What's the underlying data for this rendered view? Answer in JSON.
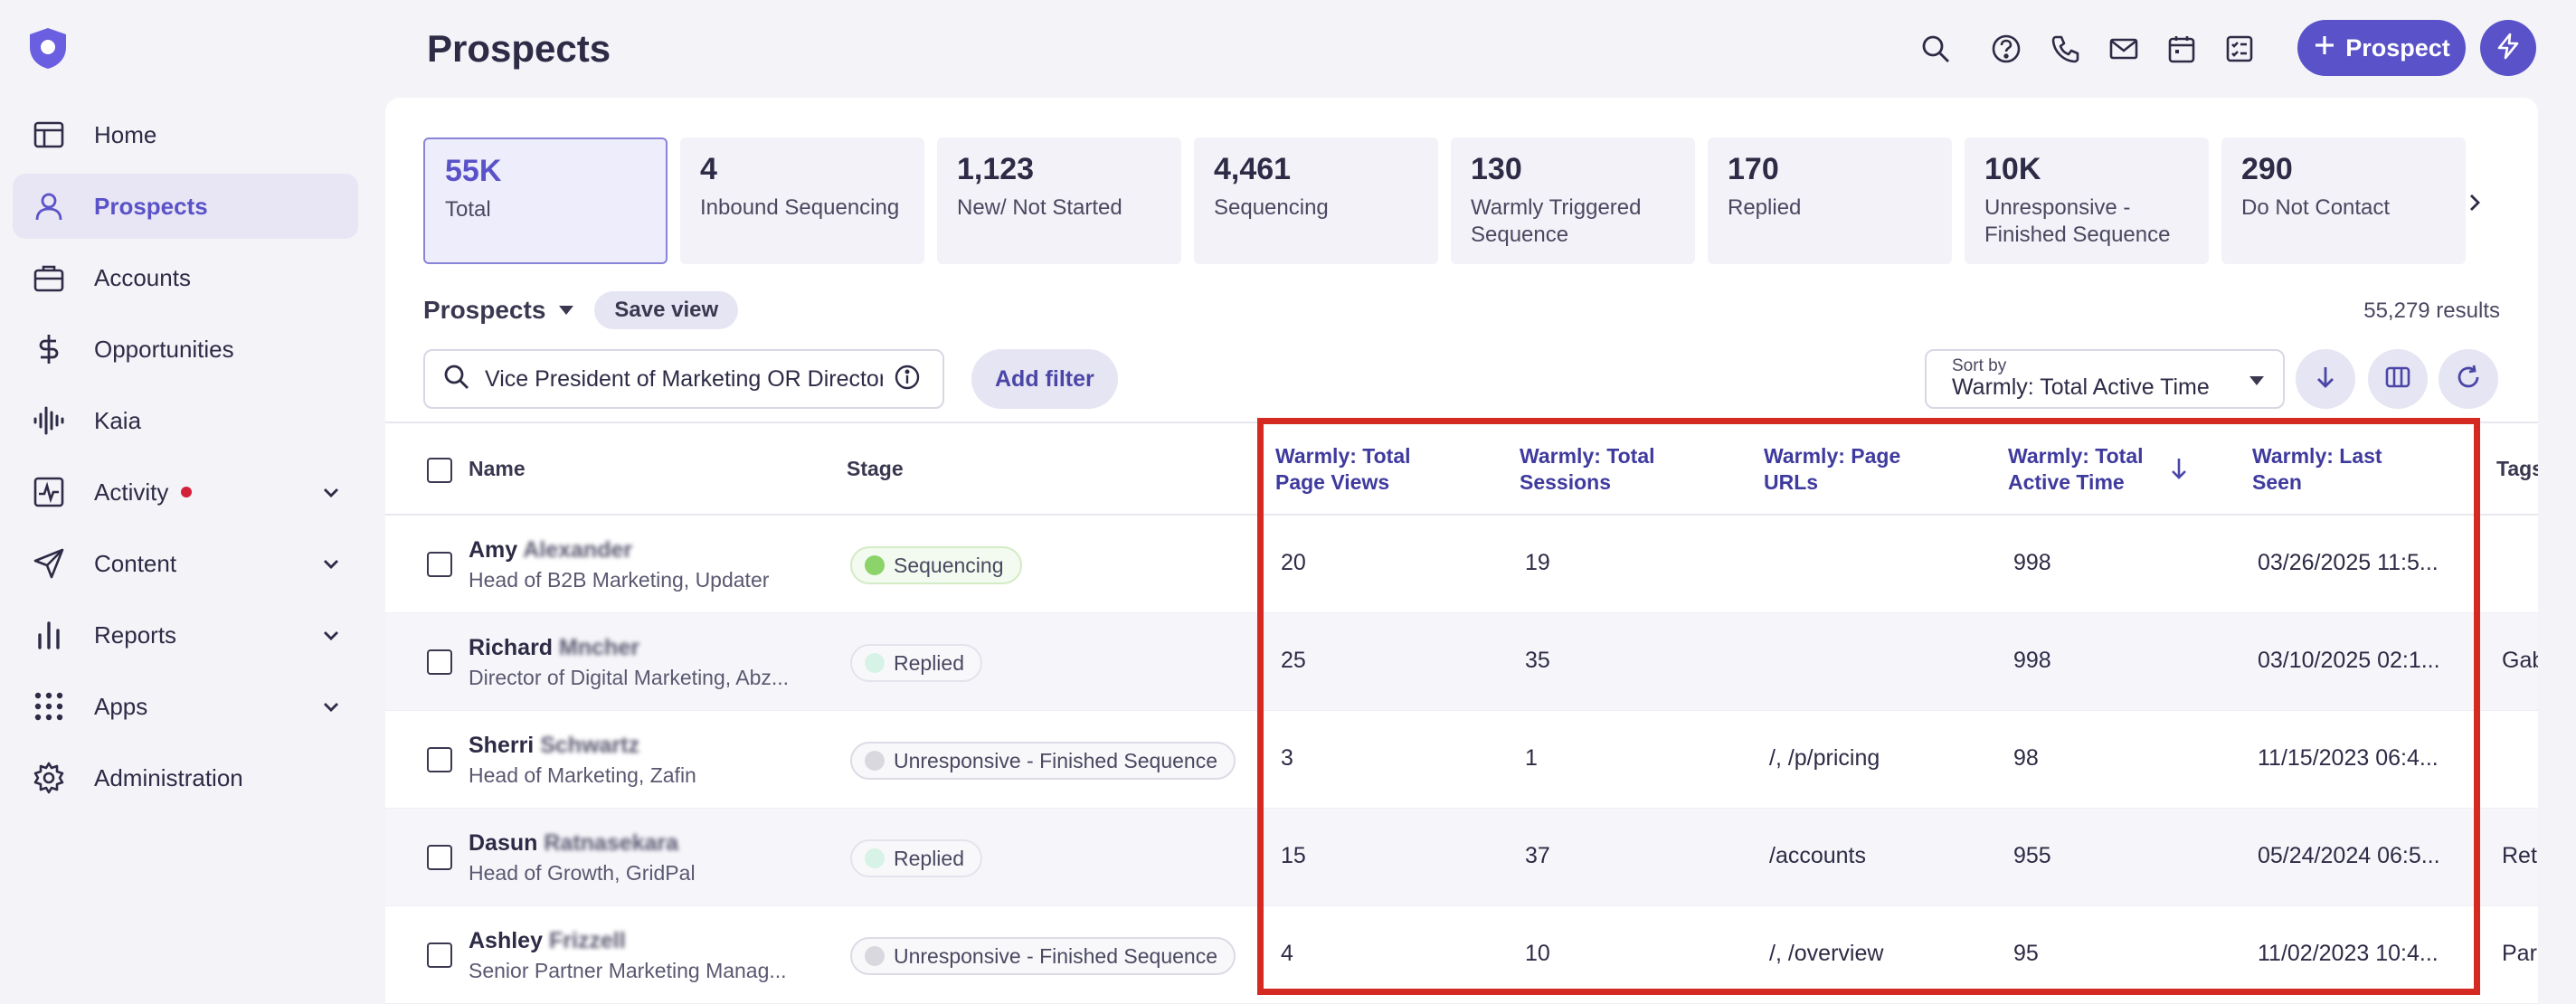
{
  "sidebar": {
    "items": [
      {
        "label": "Home",
        "icon": "home-icon"
      },
      {
        "label": "Prospects",
        "icon": "user-icon",
        "active": true
      },
      {
        "label": "Accounts",
        "icon": "briefcase-icon"
      },
      {
        "label": "Opportunities",
        "icon": "dollar-icon"
      },
      {
        "label": "Kaia",
        "icon": "soundwave-icon"
      },
      {
        "label": "Activity",
        "icon": "activity-icon",
        "expandable": true,
        "notification_dot": true
      },
      {
        "label": "Content",
        "icon": "send-icon",
        "expandable": true
      },
      {
        "label": "Reports",
        "icon": "bar-chart-icon",
        "expandable": true
      },
      {
        "label": "Apps",
        "icon": "grid-icon",
        "expandable": true
      },
      {
        "label": "Administration",
        "icon": "gear-icon"
      }
    ]
  },
  "header": {
    "title": "Prospects",
    "prospect_button": "Prospect"
  },
  "cards": [
    {
      "num": "55K",
      "label": "Total",
      "active": true
    },
    {
      "num": "4",
      "label": "Inbound Sequencing"
    },
    {
      "num": "1,123",
      "label": "New/ Not Started"
    },
    {
      "num": "4,461",
      "label": "Sequencing"
    },
    {
      "num": "130",
      "label": "Warmly Triggered Sequence"
    },
    {
      "num": "170",
      "label": "Replied"
    },
    {
      "num": "10K",
      "label": "Unresponsive - Finished Sequence"
    },
    {
      "num": "290",
      "label": "Do Not Contact"
    }
  ],
  "view": {
    "title": "Prospects",
    "save_view": "Save view",
    "results": "55,279 results"
  },
  "search": {
    "value": "Vice President of Marketing OR Director"
  },
  "filters": {
    "add_filter": "Add filter"
  },
  "sort": {
    "label": "Sort by",
    "value": "Warmly: Total Active Time"
  },
  "table": {
    "columns": {
      "name": "Name",
      "stage": "Stage",
      "page_views": [
        "Warmly: Total",
        "Page Views"
      ],
      "sessions": [
        "Warmly: Total",
        "Sessions"
      ],
      "urls": [
        "Warmly: Page",
        "URLs"
      ],
      "active_time": [
        "Warmly: Total",
        "Active Time"
      ],
      "last_seen": [
        "Warmly: Last",
        "Seen"
      ],
      "tags": "Tags"
    },
    "rows": [
      {
        "first": "Amy",
        "last": "Alexander",
        "title": "Head of B2B Marketing, Updater",
        "stage": "Sequencing",
        "stage_type": "seq",
        "page_views": "20",
        "sessions": "19",
        "urls": "",
        "active_time": "998",
        "last_seen": "03/26/2025 11:5...",
        "tags": ""
      },
      {
        "first": "Richard",
        "last": "Mncher",
        "title": "Director of Digital Marketing, Abz...",
        "stage": "Replied",
        "stage_type": "rep",
        "page_views": "25",
        "sessions": "35",
        "urls": "",
        "active_time": "998",
        "last_seen": "03/10/2025 02:1...",
        "tags": "Gab"
      },
      {
        "first": "Sherri",
        "last": "Schwartz",
        "title": "Head of Marketing, Zafin",
        "stage": "Unresponsive - Finished Sequence",
        "stage_type": "unr",
        "page_views": "3",
        "sessions": "1",
        "urls": "/, /p/pricing",
        "active_time": "98",
        "last_seen": "11/15/2023 06:4...",
        "tags": ""
      },
      {
        "first": "Dasun",
        "last": "Ratnasekara",
        "title": "Head of Growth, GridPal",
        "stage": "Replied",
        "stage_type": "rep",
        "page_views": "15",
        "sessions": "37",
        "urls": "/accounts",
        "active_time": "955",
        "last_seen": "05/24/2024 06:5...",
        "tags": "Ret"
      },
      {
        "first": "Ashley",
        "last": "Frizzell",
        "title": "Senior Partner Marketing Manag...",
        "stage": "Unresponsive - Finished Sequence",
        "stage_type": "unr",
        "page_views": "4",
        "sessions": "10",
        "urls": "/, /overview",
        "active_time": "95",
        "last_seen": "11/02/2023 10:4...",
        "tags": "Par"
      }
    ]
  },
  "colors": {
    "accent": "#5a52c8",
    "highlight_border": "#d42a22"
  }
}
